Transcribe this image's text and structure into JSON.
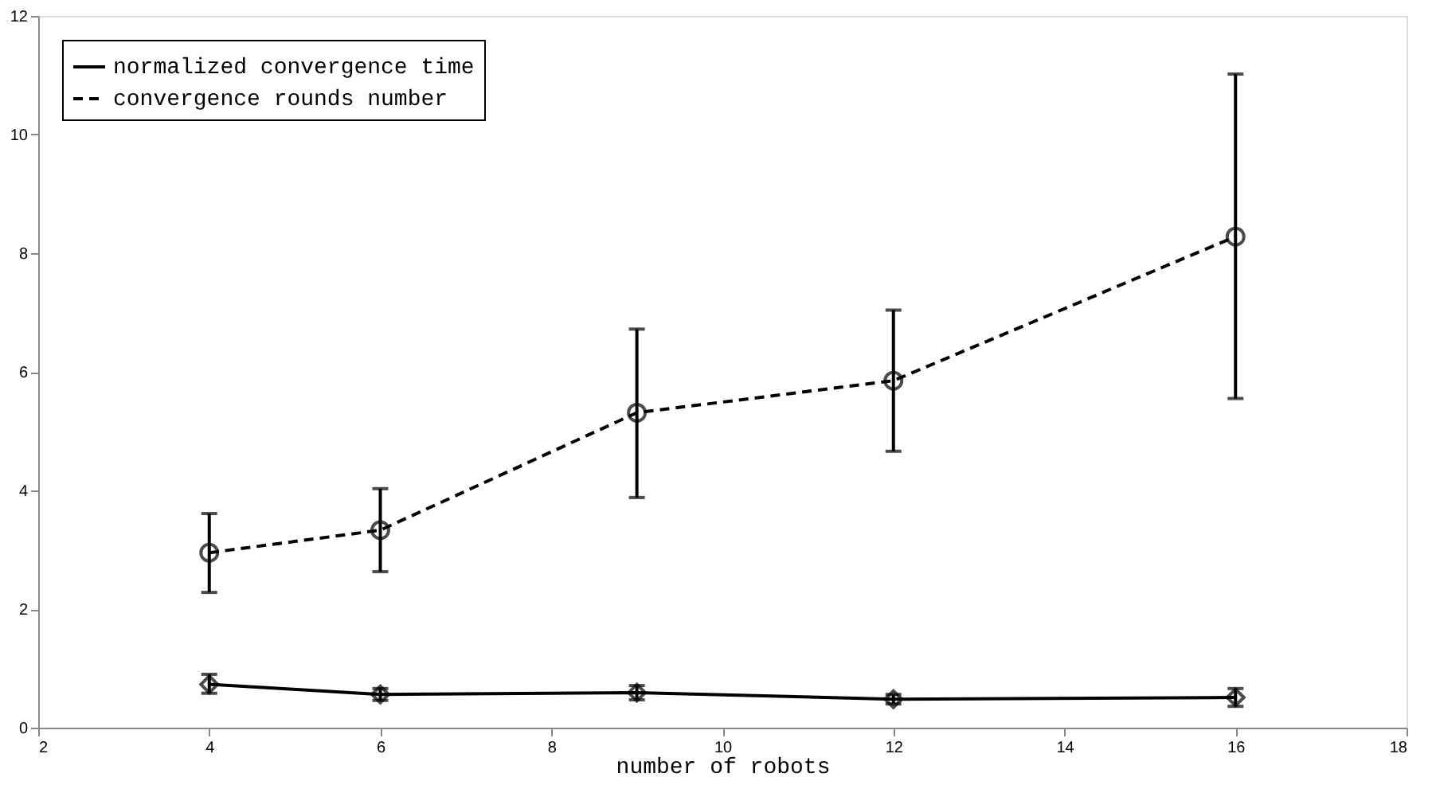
{
  "chart_data": {
    "type": "line",
    "xlabel": "number of robots",
    "x": [
      4,
      6,
      9,
      12,
      16
    ],
    "series": [
      {
        "name": "normalized convergence time",
        "color": "#000000",
        "marker": "diamond",
        "line_style": "solid",
        "values": [
          0.73,
          0.56,
          0.59,
          0.48,
          0.51
        ],
        "errors": [
          [
            0.58,
            0.9
          ],
          [
            0.46,
            0.66
          ],
          [
            0.47,
            0.71
          ],
          [
            0.4,
            0.56
          ],
          [
            0.36,
            0.66
          ]
        ]
      },
      {
        "name": "convergence rounds number",
        "color": "#000000",
        "marker": "circle",
        "line_style": "dashed",
        "values": [
          2.95,
          3.33,
          5.31,
          5.85,
          8.28
        ],
        "errors": [
          [
            2.28,
            3.61
          ],
          [
            2.63,
            4.03
          ],
          [
            3.88,
            6.72
          ],
          [
            4.66,
            7.04
          ],
          [
            5.55,
            11.02
          ]
        ]
      }
    ],
    "xlim": [
      2,
      18
    ],
    "xticks": [
      2,
      4,
      6,
      8,
      10,
      12,
      14,
      16,
      18
    ],
    "ylim": [
      0,
      12
    ],
    "yticks": [
      0,
      2,
      4,
      6,
      8,
      10,
      12
    ],
    "grid": false,
    "legend": "top left"
  }
}
